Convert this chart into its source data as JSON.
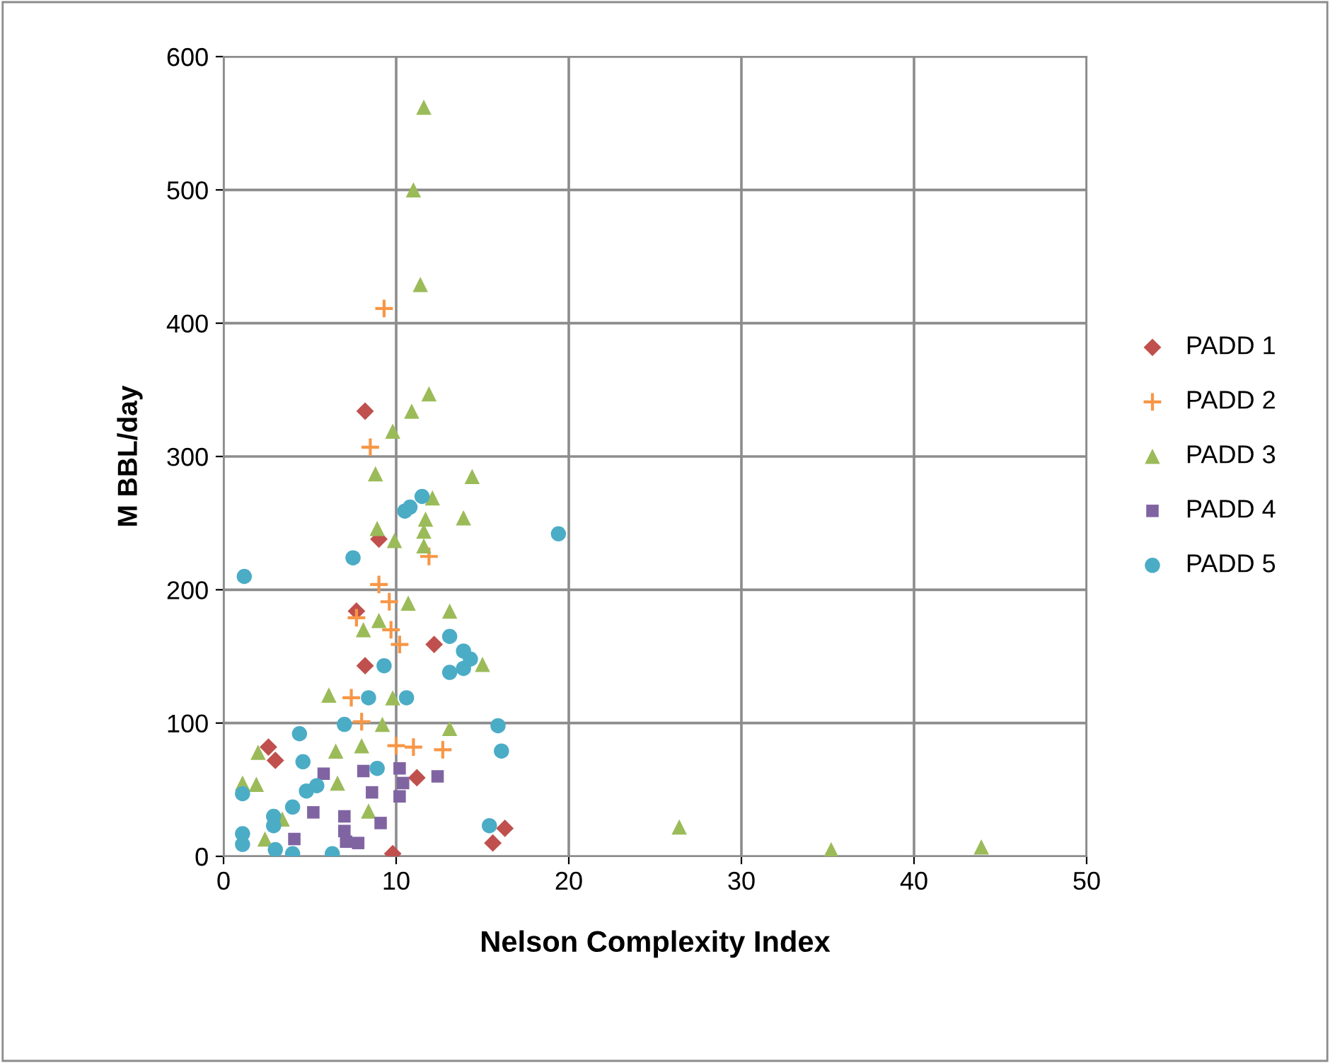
{
  "chart_data": {
    "type": "scatter",
    "xlabel": "Nelson Complexity Index",
    "ylabel": "M BBL/day",
    "xlim": [
      0,
      50
    ],
    "ylim": [
      0,
      600
    ],
    "xticks": [
      0,
      10,
      20,
      30,
      40,
      50
    ],
    "yticks": [
      0,
      100,
      200,
      300,
      400,
      500,
      600
    ],
    "grid": true,
    "legend": "right",
    "series": [
      {
        "name": "PADD 1",
        "color": "#c0504d",
        "marker": "diamond",
        "x": [
          8.2,
          7.7,
          8.2,
          12.2,
          9.0,
          2.6,
          3.0,
          11.2,
          9.8,
          16.3,
          15.6
        ],
        "values": [
          334,
          184,
          143,
          159,
          238,
          82,
          72,
          59,
          2,
          21,
          10
        ]
      },
      {
        "name": "PADD 2",
        "color": "#f79646",
        "marker": "cross",
        "x": [
          9.3,
          8.5,
          9.0,
          9.6,
          7.7,
          9.7,
          10.2,
          7.4,
          8.0,
          10.0,
          11.0,
          12.7,
          11.9
        ],
        "values": [
          411,
          307,
          204,
          191,
          179,
          170,
          159,
          119,
          101,
          83,
          82,
          80,
          225
        ]
      },
      {
        "name": "PADD 3",
        "color": "#9bbb59",
        "marker": "triangle",
        "x": [
          11.6,
          11.0,
          11.4,
          11.9,
          10.9,
          9.8,
          8.8,
          14.4,
          12.1,
          13.9,
          11.7,
          11.6,
          8.9,
          9.9,
          11.6,
          10.7,
          13.1,
          8.1,
          9.0,
          15.0,
          6.1,
          9.8,
          9.2,
          13.1,
          2.0,
          8.0,
          6.5,
          1.1,
          1.9,
          6.6,
          8.4,
          2.4,
          3.4,
          26.4,
          35.2,
          43.9
        ],
        "values": [
          562,
          500,
          429,
          347,
          334,
          319,
          287,
          285,
          269,
          254,
          253,
          244,
          246,
          237,
          233,
          190,
          184,
          170,
          177,
          144,
          121,
          119,
          99,
          96,
          78,
          83,
          79,
          55,
          54,
          55,
          34,
          13,
          28,
          22,
          5,
          7
        ]
      },
      {
        "name": "PADD 4",
        "color": "#8064a2",
        "marker": "square",
        "x": [
          5.8,
          8.1,
          8.6,
          10.2,
          10.4,
          10.2,
          12.4,
          5.2,
          9.1,
          7.0,
          7.0,
          7.8,
          4.1,
          7.1
        ],
        "values": [
          62,
          64,
          48,
          66,
          55,
          45,
          60,
          33,
          25,
          30,
          19,
          10,
          13,
          11
        ]
      },
      {
        "name": "PADD 5",
        "color": "#4bacc6",
        "marker": "circle",
        "x": [
          1.2,
          7.5,
          10.8,
          11.5,
          10.5,
          13.1,
          13.9,
          14.3,
          13.1,
          13.9,
          9.3,
          8.4,
          10.6,
          7.0,
          4.4,
          15.9,
          16.1,
          4.6,
          8.9,
          5.4,
          4.8,
          1.1,
          4.0,
          2.9,
          2.9,
          1.1,
          1.1,
          3.0,
          4.0,
          6.3,
          15.4,
          19.4
        ],
        "values": [
          210,
          224,
          262,
          270,
          259,
          165,
          154,
          148,
          138,
          141,
          143,
          119,
          119,
          99,
          92,
          98,
          79,
          71,
          66,
          53,
          49,
          47,
          37,
          30,
          23,
          17,
          9,
          5,
          2,
          2,
          23,
          242
        ]
      }
    ]
  }
}
